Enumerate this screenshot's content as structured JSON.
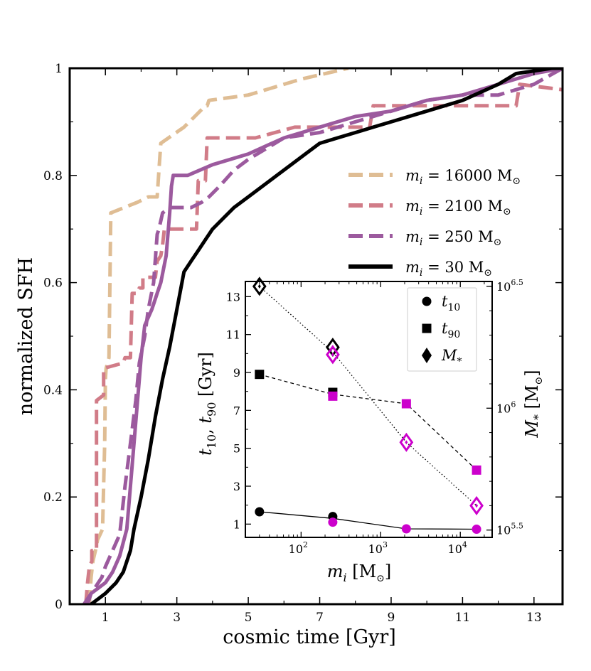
{
  "chart_data": {
    "main": {
      "type": "line",
      "xlabel": "cosmic time [Gyr]",
      "ylabel": "normalized SFH",
      "xlim": [
        0,
        13.8
      ],
      "ylim": [
        0,
        1.0
      ],
      "xticks": [
        1,
        3,
        5,
        7,
        9,
        11,
        13
      ],
      "yticks": [
        0,
        0.2,
        0.4,
        0.6,
        0.8,
        1
      ],
      "ytick_labels": [
        "0",
        "0.2",
        "0.4",
        "0.6",
        "0.8",
        "1"
      ],
      "legend_position": "upper-right",
      "series": [
        {
          "name": "m_i = 16000 M⊙",
          "label_prefix": "m",
          "label_sub": "i",
          "label_value": " = 16000 M",
          "color": "#dfbd94",
          "dash": true,
          "x": [
            0.55,
            0.6,
            0.65,
            0.72,
            0.78,
            0.85,
            0.92,
            0.98,
            1.0,
            1.02,
            1.1,
            1.15,
            1.9,
            2.2,
            2.45,
            2.5,
            2.55,
            3.2,
            3.5,
            3.8,
            3.85,
            3.9,
            5.0,
            6.5,
            7.8
          ],
          "y": [
            0.0,
            0.05,
            0.08,
            0.1,
            0.12,
            0.13,
            0.14,
            0.3,
            0.42,
            0.44,
            0.46,
            0.73,
            0.75,
            0.76,
            0.76,
            0.81,
            0.86,
            0.89,
            0.91,
            0.93,
            0.93,
            0.94,
            0.95,
            0.98,
            1.0
          ]
        },
        {
          "name": "m_i = 2100 M⊙",
          "label_prefix": "m",
          "label_sub": "i",
          "label_value": " = 2100 M",
          "color": "#d17c88",
          "dash": true,
          "x": [
            0.45,
            0.5,
            0.55,
            0.62,
            0.62,
            0.75,
            0.75,
            0.95,
            0.95,
            1.5,
            1.55,
            1.7,
            1.75,
            1.9,
            1.95,
            2.05,
            2.05,
            2.4,
            2.45,
            2.55,
            2.6,
            2.65,
            2.9,
            3.4,
            3.55,
            3.6,
            3.8,
            3.85,
            4.3,
            5.2,
            6.3,
            7.3,
            8.4,
            8.5,
            10.5,
            12.5,
            12.6,
            13.8
          ],
          "y": [
            0.0,
            0.04,
            0.07,
            0.08,
            0.1,
            0.1,
            0.38,
            0.39,
            0.44,
            0.45,
            0.46,
            0.46,
            0.58,
            0.58,
            0.59,
            0.59,
            0.61,
            0.61,
            0.64,
            0.65,
            0.67,
            0.7,
            0.7,
            0.7,
            0.7,
            0.79,
            0.79,
            0.87,
            0.87,
            0.87,
            0.89,
            0.89,
            0.89,
            0.93,
            0.93,
            0.93,
            0.97,
            0.96
          ]
        },
        {
          "name": "m_i = 250 M⊙",
          "label_prefix": "m",
          "label_sub": "i",
          "label_value": " = 250 M",
          "color": "#9c5a9e",
          "dash": true,
          "x": [
            0.4,
            0.5,
            0.7,
            0.9,
            1.0,
            1.2,
            1.4,
            1.55,
            1.7,
            1.85,
            1.95,
            2.1,
            2.2,
            2.35,
            2.45,
            2.5,
            2.6,
            2.8,
            3.2,
            3.4,
            3.7,
            3.9,
            4.2,
            4.6,
            5.0,
            5.5,
            6.0,
            7.0,
            8.0,
            9.0,
            10.0,
            11.0,
            12.0,
            13.0,
            13.8
          ],
          "y": [
            0.0,
            0.01,
            0.03,
            0.05,
            0.07,
            0.1,
            0.13,
            0.22,
            0.3,
            0.38,
            0.45,
            0.5,
            0.55,
            0.6,
            0.69,
            0.7,
            0.73,
            0.74,
            0.74,
            0.74,
            0.75,
            0.76,
            0.78,
            0.81,
            0.83,
            0.85,
            0.87,
            0.88,
            0.9,
            0.92,
            0.94,
            0.95,
            0.95,
            0.97,
            1.0
          ]
        },
        {
          "name": "m_i = 250 M⊙ (solid)",
          "color": "#9c5a9e",
          "dash": false,
          "legend": false,
          "x": [
            0.5,
            0.6,
            0.8,
            1.0,
            1.2,
            1.4,
            1.6,
            1.7,
            1.8,
            1.9,
            2.0,
            2.1,
            2.3,
            2.45,
            2.55,
            2.7,
            2.8,
            2.85,
            2.9,
            3.3,
            4.0,
            5.0,
            6.0,
            7.0,
            8.0,
            9.0,
            10.0,
            11.0,
            12.0,
            13.0,
            13.8
          ],
          "y": [
            0.0,
            0.02,
            0.03,
            0.04,
            0.06,
            0.09,
            0.14,
            0.22,
            0.3,
            0.38,
            0.46,
            0.52,
            0.55,
            0.58,
            0.6,
            0.65,
            0.73,
            0.78,
            0.8,
            0.8,
            0.82,
            0.84,
            0.87,
            0.89,
            0.91,
            0.92,
            0.94,
            0.95,
            0.97,
            0.99,
            1.0
          ]
        },
        {
          "name": "m_i = 30 M⊙",
          "label_prefix": "m",
          "label_sub": "i",
          "label_value": " = 30 M",
          "color": "#000000",
          "dash": false,
          "x": [
            0.6,
            0.8,
            1.0,
            1.3,
            1.5,
            1.7,
            1.8,
            2.0,
            2.2,
            2.4,
            2.6,
            2.8,
            3.0,
            3.2,
            3.4,
            3.6,
            3.8,
            4.0,
            4.3,
            4.6,
            5.0,
            5.4,
            5.8,
            6.2,
            6.6,
            7.0,
            7.5,
            8.0,
            8.5,
            9.0,
            10.0,
            11.0,
            12.0,
            12.5,
            13.0,
            13.5,
            13.8
          ],
          "y": [
            0.0,
            0.01,
            0.02,
            0.04,
            0.06,
            0.1,
            0.14,
            0.2,
            0.27,
            0.35,
            0.42,
            0.48,
            0.55,
            0.62,
            0.64,
            0.66,
            0.68,
            0.7,
            0.72,
            0.74,
            0.76,
            0.78,
            0.8,
            0.82,
            0.84,
            0.86,
            0.87,
            0.88,
            0.89,
            0.9,
            0.92,
            0.94,
            0.97,
            0.99,
            0.995,
            1.0,
            1.0
          ]
        }
      ]
    },
    "inset": {
      "type": "scatter",
      "xlabel_var": "m",
      "xlabel_sub": "i",
      "xlabel_unit": " [M",
      "xlabel_close": "]",
      "ylabel_left": "t10, t90 [Gyr]",
      "ylabel_right_var": "M",
      "ylabel_right_sub": "*",
      "ylabel_right_unit": " [M",
      "ylabel_right_close": "]",
      "xlim_log10": [
        1.3,
        4.4
      ],
      "ylim_left": [
        0.3,
        13.8
      ],
      "yticks_left": [
        1,
        3,
        5,
        7,
        9,
        11,
        13
      ],
      "ylim_right_log10": [
        5.47,
        6.52
      ],
      "x_tick_bases": [
        "10",
        "10",
        "10"
      ],
      "x_tick_exps": [
        "2",
        "3",
        "4"
      ],
      "x_tick_log10": [
        2,
        3,
        4
      ],
      "y_right_base": "10",
      "y_right_tick_exps": [
        "6.5",
        "6",
        "5.5"
      ],
      "y_right_tick_log10": [
        6.5,
        6.0,
        5.5
      ],
      "legend": [
        {
          "symbol": "circle",
          "var": "t",
          "sub": "10"
        },
        {
          "symbol": "square",
          "var": "t",
          "sub": "90"
        },
        {
          "symbol": "diamond",
          "var": "M",
          "sub": "*"
        }
      ],
      "black_points": {
        "mass": [
          30,
          250
        ],
        "t10": [
          1.65,
          1.4
        ],
        "t90": [
          8.9,
          7.95
        ],
        "mstar_log10": [
          6.5,
          6.25
        ]
      },
      "magenta_points": {
        "mass": [
          250,
          2100,
          16000
        ],
        "t10": [
          1.1,
          0.75,
          0.73
        ],
        "t90": [
          7.75,
          7.35,
          3.85
        ],
        "mstar_log10": [
          6.22,
          5.86,
          5.6
        ]
      },
      "t10_line": {
        "mass": [
          30,
          250,
          2100,
          16000
        ],
        "values": [
          1.65,
          1.3,
          0.75,
          0.73
        ]
      },
      "t90_line": {
        "mass": [
          30,
          250,
          2100,
          16000
        ],
        "values": [
          8.9,
          7.85,
          7.35,
          3.85
        ]
      },
      "mstar_line": {
        "mass": [
          30,
          250,
          2100,
          16000
        ],
        "values_log10": [
          6.5,
          6.23,
          5.86,
          5.6
        ]
      },
      "colors": {
        "black": "#000000",
        "magenta": "#cc00cc"
      }
    }
  }
}
